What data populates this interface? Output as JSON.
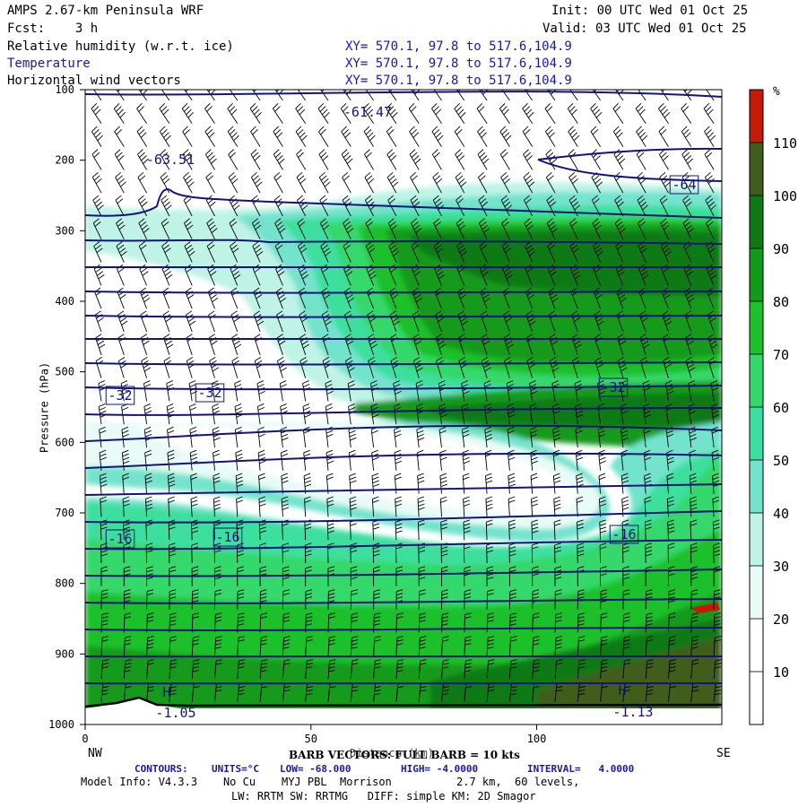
{
  "header": {
    "model_title": "AMPS 2.67-km Peninsula WRF",
    "init_time": "Init: 00 UTC Wed 01 Oct 25",
    "forecast": "Fcst:    3 h",
    "valid_time": "Valid: 03 UTC Wed 01 Oct 25",
    "fields": [
      {
        "name": "Relative humidity (w.r.t. ice)",
        "coords": "XY= 570.1, 97.8 to 517.6,104.9"
      },
      {
        "name": "Temperature",
        "coords": "XY= 570.1, 97.8 to 517.6,104.9"
      },
      {
        "name": "Horizontal wind vectors",
        "coords": "XY= 570.1, 97.8 to 517.6,104.9"
      }
    ]
  },
  "chart_data": {
    "type": "heatmap",
    "description_fields": [
      "relative humidity (filled)",
      "temperature (contours)",
      "wind barbs"
    ],
    "ylabel": "Pressure (hPa)",
    "xlabel": "Distance (km)",
    "x_ticks": [
      0,
      50,
      100
    ],
    "xlim": [
      0,
      141
    ],
    "y_ticks": [
      100,
      200,
      300,
      400,
      500,
      600,
      700,
      800,
      900,
      1000
    ],
    "ylim": [
      1000,
      100
    ],
    "left_end_label": "NW",
    "right_end_label": "SE",
    "colorbar": {
      "unit": "%",
      "levels": [
        10,
        20,
        30,
        40,
        50,
        60,
        70,
        80,
        90,
        100,
        110
      ],
      "colors": [
        "#ffffff",
        "#ffffff",
        "#e8fbf6",
        "#bff3e6",
        "#73e3cd",
        "#3ddf9f",
        "#34d86a",
        "#1fc02c",
        "#129a1b",
        "#0f7a14",
        "#3f5d1e",
        "#c41a08"
      ]
    },
    "temperature_contour_labels": [
      "-61.47",
      "-63.51",
      "-64",
      "-32",
      "-32",
      "-32",
      "-16",
      "-16",
      "-16",
      "H",
      "H",
      "-1.05",
      "-1.13"
    ],
    "barb_note": "BARB VECTORS: FULL BARB = 10 kts",
    "contour_info": {
      "label": "CONTOURS:",
      "units": "UNITS=°C",
      "low": "LOW= -68.000",
      "high": "HIGH= -4.0000",
      "interval": "INTERVAL=   4.0000"
    },
    "colors": {
      "contour": "#13137a",
      "axis": "#000000"
    }
  },
  "footer": {
    "model_info": "Model Info: V4.3.3    No Cu    MYJ PBL  Morrison          2.7 km,  60 levels,",
    "physics": "LW: RRTM SW: RRTMG   DIFF: simple KM: 2D Smagor"
  }
}
